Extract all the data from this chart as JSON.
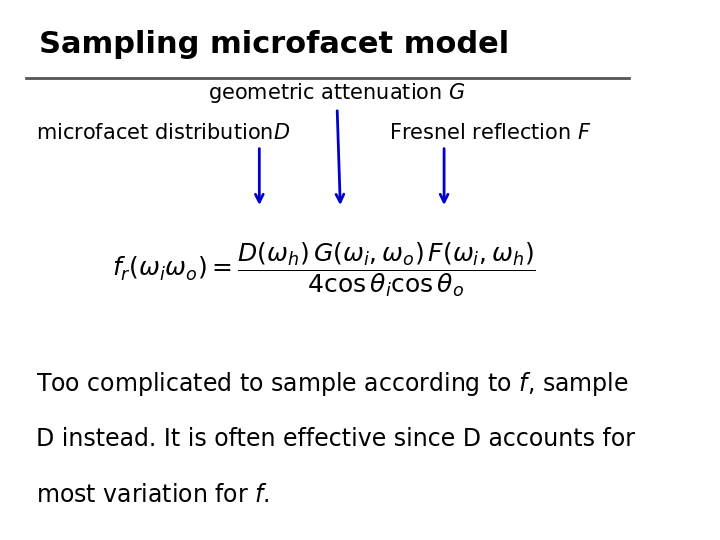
{
  "title": "Sampling microfacet model",
  "bg_color": "#ffffff",
  "title_color": "#000000",
  "title_fontsize": 22,
  "line_color": "#555555",
  "arrow_color": "#0000cc",
  "label_geo": "geometric attenuation $G$",
  "label_micro": "microfacet distribution$D$",
  "label_fresnel": "Fresnel reflection $F$",
  "formula": "$f_r(\\omega_i\\omega_o) = \\dfrac{D(\\omega_h)\\,G(\\omega_i,\\omega_o)\\,F(\\omega_i,\\omega_h)}{4\\cos\\theta_i\\cos\\theta_o}$",
  "body_line1": "Too complicated to sample according to $f$, sample",
  "body_line2": "D instead. It is often effective since D accounts for",
  "body_line3": "most variation for $f$.",
  "text_fontsize": 17,
  "formula_fontsize": 18,
  "label_fontsize": 15
}
